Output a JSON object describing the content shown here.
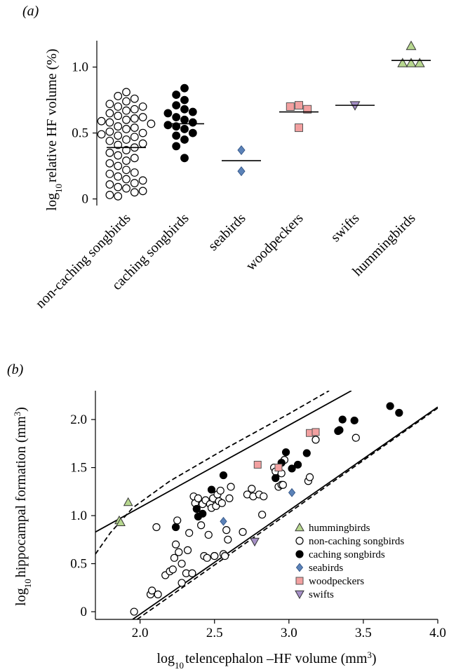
{
  "chart_data": [
    {
      "id": "a",
      "panel_label": "(a)",
      "type": "scatter",
      "title": "",
      "xlabel": "",
      "ylabel_main": "log",
      "ylabel_sub": "10",
      "ylabel_rest": "relative HF volume (%)",
      "ylim": [
        -0.05,
        1.2
      ],
      "yticks": [
        0,
        0.5,
        1.0
      ],
      "ytick_labels": [
        "0",
        "0.5",
        "1.0"
      ],
      "categories": [
        "non-caching songbirds",
        "caching songbirds",
        "seabirds",
        "woodpeckers",
        "swifts",
        "hummingbirds"
      ],
      "series": [
        {
          "name": "non-caching songbirds",
          "marker": "circle-open",
          "color": "#ffffff",
          "mean": 0.39,
          "values": [
            0.81,
            0.78,
            0.76,
            0.74,
            0.72,
            0.7,
            0.7,
            0.68,
            0.67,
            0.65,
            0.63,
            0.62,
            0.61,
            0.6,
            0.59,
            0.58,
            0.57,
            0.55,
            0.54,
            0.53,
            0.51,
            0.5,
            0.49,
            0.48,
            0.47,
            0.45,
            0.44,
            0.42,
            0.41,
            0.39,
            0.37,
            0.35,
            0.33,
            0.31,
            0.29,
            0.27,
            0.25,
            0.22,
            0.2,
            0.19,
            0.17,
            0.15,
            0.14,
            0.12,
            0.11,
            0.09,
            0.08,
            0.06,
            0.05,
            0.03,
            0.02
          ]
        },
        {
          "name": "caching songbirds",
          "marker": "circle-filled",
          "color": "#000000",
          "mean": 0.57,
          "values": [
            0.84,
            0.79,
            0.75,
            0.71,
            0.68,
            0.66,
            0.65,
            0.62,
            0.6,
            0.58,
            0.56,
            0.55,
            0.53,
            0.5,
            0.48,
            0.45,
            0.4,
            0.31
          ]
        },
        {
          "name": "seabirds",
          "marker": "diamond",
          "color": "#5b82b8",
          "mean": 0.29,
          "values": [
            0.37,
            0.21
          ]
        },
        {
          "name": "woodpeckers",
          "marker": "square",
          "color": "#f2a0a0",
          "mean": 0.66,
          "values": [
            0.71,
            0.7,
            0.68,
            0.54
          ]
        },
        {
          "name": "swifts",
          "marker": "triangle-down",
          "color": "#a58fc6",
          "mean": 0.71,
          "values": [
            0.71
          ]
        },
        {
          "name": "hummingbirds",
          "marker": "triangle-up",
          "color": "#b7d78f",
          "mean": 1.05,
          "values": [
            1.16,
            1.03,
            1.03,
            1.03
          ]
        }
      ]
    },
    {
      "id": "b",
      "panel_label": "(b)",
      "type": "scatter",
      "title": "",
      "xlabel_main": "log",
      "xlabel_sub": "10",
      "xlabel_rest": "telencephalon –HF volume (mm",
      "xlabel_sup": "3",
      "xlabel_close": ")",
      "ylabel_main": "log",
      "ylabel_sub": "10",
      "ylabel_rest": "hippocampal formation (mm",
      "ylabel_sup": "3",
      "ylabel_close": ")",
      "xlim": [
        1.7,
        4.0
      ],
      "ylim": [
        -0.08,
        2.3
      ],
      "xticks": [
        2.0,
        2.5,
        3.0,
        3.5,
        4.0
      ],
      "xtick_labels": [
        "2.0",
        "2.5",
        "3.0",
        "3.5",
        "4.0"
      ],
      "yticks": [
        0,
        0.5,
        1.0,
        1.5,
        2.0
      ],
      "ytick_labels": [
        "0",
        "0.5",
        "1.0",
        "1.5",
        "2.0"
      ],
      "legend_position": "bottom-right",
      "lines": [
        {
          "style": "solid",
          "points": [
            [
              1.7,
              0.83
            ],
            [
              3.42,
              2.3
            ]
          ]
        },
        {
          "style": "solid",
          "points": [
            [
              1.95,
              -0.08
            ],
            [
              4.0,
              2.13
            ]
          ]
        },
        {
          "style": "dashed",
          "points": [
            [
              1.7,
              0.6
            ],
            [
              1.8,
              0.82
            ],
            [
              1.95,
              1.08
            ],
            [
              2.2,
              1.36
            ],
            [
              2.6,
              1.72
            ],
            [
              3.0,
              2.06
            ],
            [
              3.27,
              2.3
            ]
          ]
        },
        {
          "style": "dashed",
          "points": [
            [
              1.98,
              -0.08
            ],
            [
              3.0,
              1.03
            ],
            [
              4.0,
              2.12
            ]
          ]
        }
      ],
      "series": [
        {
          "name": "hummingbirds",
          "marker": "triangle-up",
          "color": "#b7d78f",
          "points": [
            [
              1.92,
              1.14
            ],
            [
              1.86,
              0.95
            ],
            [
              1.87,
              0.93
            ]
          ]
        },
        {
          "name": "non-caching songbirds",
          "marker": "circle-open",
          "color": "#ffffff",
          "points": [
            [
              1.96,
              0.0
            ],
            [
              2.07,
              0.18
            ],
            [
              2.08,
              0.22
            ],
            [
              2.12,
              0.18
            ],
            [
              2.11,
              0.88
            ],
            [
              2.17,
              0.38
            ],
            [
              2.2,
              0.42
            ],
            [
              2.22,
              0.44
            ],
            [
              2.23,
              0.56
            ],
            [
              2.24,
              0.7
            ],
            [
              2.25,
              0.95
            ],
            [
              2.26,
              0.62
            ],
            [
              2.28,
              0.3
            ],
            [
              2.28,
              0.5
            ],
            [
              2.31,
              0.4
            ],
            [
              2.32,
              0.64
            ],
            [
              2.33,
              0.82
            ],
            [
              2.35,
              0.4
            ],
            [
              2.36,
              1.2
            ],
            [
              2.37,
              1.13
            ],
            [
              2.39,
              1.18
            ],
            [
              2.41,
              0.9
            ],
            [
              2.42,
              1.12
            ],
            [
              2.43,
              0.58
            ],
            [
              2.44,
              1.16
            ],
            [
              2.45,
              0.56
            ],
            [
              2.46,
              0.8
            ],
            [
              2.47,
              1.12
            ],
            [
              2.48,
              1.08
            ],
            [
              2.49,
              1.18
            ],
            [
              2.5,
              0.58
            ],
            [
              2.5,
              0.58
            ],
            [
              2.51,
              1.1
            ],
            [
              2.52,
              1.22
            ],
            [
              2.53,
              1.15
            ],
            [
              2.54,
              1.26
            ],
            [
              2.55,
              1.13
            ],
            [
              2.56,
              0.6
            ],
            [
              2.57,
              0.58
            ],
            [
              2.58,
              0.85
            ],
            [
              2.59,
              0.75
            ],
            [
              2.6,
              1.18
            ],
            [
              2.61,
              1.3
            ],
            [
              2.69,
              0.83
            ],
            [
              2.72,
              1.22
            ],
            [
              2.75,
              1.28
            ],
            [
              2.76,
              1.2
            ],
            [
              2.8,
              1.22
            ],
            [
              2.82,
              1.01
            ],
            [
              2.83,
              1.2
            ],
            [
              2.9,
              1.5
            ],
            [
              2.91,
              1.46
            ],
            [
              2.93,
              1.3
            ],
            [
              2.95,
              1.32
            ],
            [
              2.95,
              1.44
            ],
            [
              2.96,
              1.32
            ],
            [
              2.97,
              1.58
            ],
            [
              3.13,
              1.36
            ],
            [
              3.14,
              1.4
            ],
            [
              3.18,
              1.79
            ],
            [
              3.45,
              1.81
            ]
          ]
        },
        {
          "name": "caching songbirds",
          "marker": "circle-filled",
          "color": "#000000",
          "points": [
            [
              2.24,
              0.88
            ],
            [
              2.38,
              1.07
            ],
            [
              2.39,
              0.99
            ],
            [
              2.42,
              1.02
            ],
            [
              2.48,
              1.27
            ],
            [
              2.56,
              1.42
            ],
            [
              2.91,
              1.39
            ],
            [
              2.95,
              1.55
            ],
            [
              2.98,
              1.66
            ],
            [
              3.02,
              1.49
            ],
            [
              3.06,
              1.53
            ],
            [
              3.12,
              1.65
            ],
            [
              3.33,
              1.88
            ],
            [
              3.34,
              1.89
            ],
            [
              3.36,
              2.0
            ],
            [
              3.44,
              1.99
            ],
            [
              3.68,
              2.14
            ],
            [
              3.74,
              2.07
            ]
          ]
        },
        {
          "name": "seabirds",
          "marker": "diamond",
          "color": "#5b82b8",
          "points": [
            [
              2.56,
              0.94
            ],
            [
              3.02,
              1.24
            ]
          ]
        },
        {
          "name": "woodpeckers",
          "marker": "square",
          "color": "#f2a0a0",
          "points": [
            [
              2.79,
              1.53
            ],
            [
              2.93,
              1.5
            ],
            [
              3.14,
              1.86
            ],
            [
              3.18,
              1.87
            ]
          ]
        },
        {
          "name": "swifts",
          "marker": "triangle-down",
          "color": "#a58fc6",
          "points": [
            [
              2.77,
              0.73
            ]
          ]
        }
      ],
      "legend": [
        {
          "name": "hummingbirds",
          "marker": "triangle-up",
          "color": "#b7d78f"
        },
        {
          "name": "non-caching songbirds",
          "marker": "circle-open",
          "color": "#ffffff"
        },
        {
          "name": "caching songbirds",
          "marker": "circle-filled",
          "color": "#000000"
        },
        {
          "name": "seabirds",
          "marker": "diamond",
          "color": "#5b82b8"
        },
        {
          "name": "woodpeckers",
          "marker": "square",
          "color": "#f2a0a0"
        },
        {
          "name": "swifts",
          "marker": "triangle-down",
          "color": "#a58fc6"
        }
      ]
    }
  ]
}
